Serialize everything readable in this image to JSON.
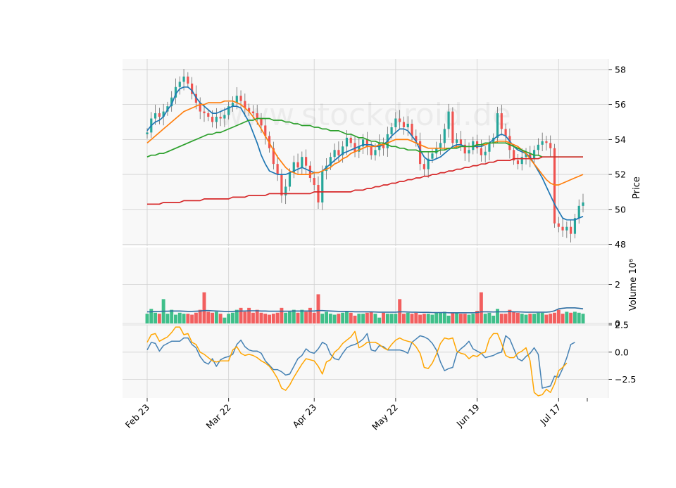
{
  "watermark": "www.stockdroid.de",
  "colors": {
    "up": "#26a69a",
    "up_bar": "#3fbf8a",
    "down": "#ef5350",
    "down_bar": "#f25f5f",
    "ma_fast": "#1f77b4",
    "ma_mid": "#ff7f0e",
    "ma_slow": "#2ca02c",
    "ma_long": "#d62728",
    "vol_ma": "#2f6fa3",
    "osc_1": "#4682b4",
    "osc_2": "#ffa500",
    "panel_bg": "#f8f8f8",
    "grid": "#d0d0d0"
  },
  "chart_data": [
    {
      "type": "candlestick",
      "ylabel": "Price",
      "ylim": [
        47.9,
        58.6
      ],
      "yticks": [
        48,
        50,
        52,
        54,
        56,
        58
      ],
      "xticks": [
        "Feb 23",
        "Mar 22",
        "Apr 23",
        "May 22",
        "Jun 19",
        "Jul 17"
      ],
      "xtick_index": [
        0,
        20,
        41,
        61,
        81,
        101
      ],
      "grid": true,
      "close": [
        54.4,
        55.2,
        55.5,
        55.3,
        55.6,
        55.9,
        56.4,
        57.0,
        57.3,
        57.6,
        57.2,
        56.6,
        56.1,
        55.6,
        55.5,
        55.3,
        55.0,
        55.3,
        55.2,
        55.4,
        55.9,
        56.1,
        56.5,
        56.2,
        55.8,
        55.6,
        55.5,
        55.2,
        54.8,
        54.2,
        53.5,
        52.6,
        52.0,
        50.8,
        51.3,
        52.1,
        52.7,
        52.4,
        53.0,
        52.5,
        51.8,
        51.4,
        50.4,
        52.2,
        52.5,
        53.0,
        53.4,
        53.1,
        53.6,
        54.1,
        53.8,
        53.3,
        53.6,
        54.0,
        53.6,
        53.1,
        53.4,
        53.8,
        53.5,
        54.3,
        54.7,
        55.2,
        55.0,
        54.7,
        54.9,
        54.2,
        53.9,
        52.6,
        52.3,
        52.9,
        53.2,
        53.5,
        53.8,
        54.6,
        55.6,
        53.8,
        54.0,
        53.7,
        53.2,
        53.4,
        53.9,
        53.5,
        53.1,
        53.3,
        53.8,
        54.1,
        55.5,
        54.6,
        54.2,
        53.4,
        52.8,
        52.6,
        53.0,
        53.2,
        52.9,
        53.4,
        53.7,
        53.9,
        53.8,
        53.5,
        49.2,
        49.0,
        48.8,
        49.0,
        48.6,
        49.5,
        50.2,
        50.4
      ],
      "series": [
        {
          "name": "",
          "role": "ma_fast",
          "values": [
            54.5,
            54.8,
            55.0,
            55.1,
            55.3,
            55.7,
            56.0,
            56.6,
            56.9,
            57.0,
            57.0,
            56.8,
            56.4,
            56.1,
            55.9,
            55.7,
            55.5,
            55.5,
            55.6,
            55.7,
            55.8,
            55.9,
            55.9,
            55.8,
            55.4,
            55.0,
            54.4,
            53.8,
            53.1,
            52.6,
            52.2,
            52.1,
            52.0,
            52.0,
            52.0,
            52.1,
            52.2,
            52.3,
            52.4,
            52.3,
            52.2,
            52.1,
            52.1,
            52.2,
            52.4,
            52.6,
            52.8,
            53.0,
            53.2,
            53.3,
            53.4,
            53.5,
            53.6,
            53.7,
            53.7,
            53.7,
            53.6,
            53.6,
            53.7,
            53.9,
            54.2,
            54.4,
            54.6,
            54.6,
            54.5,
            54.2,
            53.9,
            53.4,
            53.0,
            52.8,
            52.8,
            52.9,
            53.0,
            53.2,
            53.4,
            53.6,
            53.7,
            53.7,
            53.6,
            53.6,
            53.6,
            53.6,
            53.6,
            53.7,
            53.8,
            54.0,
            54.2,
            54.3,
            54.2,
            53.9,
            53.6,
            53.4,
            53.3,
            53.2,
            53.0,
            52.6,
            52.2,
            51.8,
            51.3,
            50.8,
            50.3,
            49.9,
            49.5,
            49.4,
            49.4,
            49.4,
            49.5,
            49.6
          ]
        },
        {
          "name": "",
          "role": "ma_mid",
          "values": [
            53.8,
            54.0,
            54.2,
            54.4,
            54.6,
            54.8,
            55.0,
            55.2,
            55.4,
            55.6,
            55.7,
            55.8,
            55.9,
            56.0,
            56.0,
            56.1,
            56.1,
            56.1,
            56.1,
            56.2,
            56.2,
            56.2,
            56.1,
            56.0,
            55.8,
            55.6,
            55.3,
            55.0,
            54.6,
            54.2,
            53.8,
            53.4,
            53.0,
            52.7,
            52.4,
            52.2,
            52.1,
            52.0,
            52.0,
            52.0,
            52.0,
            52.1,
            52.1,
            52.2,
            52.3,
            52.4,
            52.6,
            52.7,
            52.9,
            53.0,
            53.2,
            53.3,
            53.4,
            53.5,
            53.6,
            53.6,
            53.6,
            53.7,
            53.7,
            53.8,
            53.9,
            54.0,
            54.0,
            54.0,
            54.0,
            53.9,
            53.8,
            53.7,
            53.6,
            53.5,
            53.5,
            53.5,
            53.5,
            53.5,
            53.5,
            53.5,
            53.6,
            53.6,
            53.6,
            53.6,
            53.6,
            53.7,
            53.7,
            53.7,
            53.8,
            53.8,
            53.9,
            53.9,
            53.9,
            53.8,
            53.7,
            53.6,
            53.4,
            53.2,
            52.9,
            52.6,
            52.3,
            52.0,
            51.7,
            51.5,
            51.4,
            51.4,
            51.5,
            51.6,
            51.7,
            51.8,
            51.9,
            52.0
          ]
        },
        {
          "name": "",
          "role": "ma_slow",
          "values": [
            53.0,
            53.1,
            53.1,
            53.2,
            53.2,
            53.3,
            53.4,
            53.5,
            53.6,
            53.7,
            53.8,
            53.9,
            54.0,
            54.1,
            54.2,
            54.3,
            54.3,
            54.4,
            54.4,
            54.5,
            54.6,
            54.7,
            54.8,
            54.9,
            55.0,
            55.1,
            55.1,
            55.2,
            55.2,
            55.2,
            55.2,
            55.1,
            55.1,
            55.1,
            55.0,
            55.0,
            54.9,
            54.9,
            54.8,
            54.8,
            54.8,
            54.7,
            54.7,
            54.6,
            54.6,
            54.5,
            54.5,
            54.5,
            54.4,
            54.3,
            54.3,
            54.2,
            54.1,
            54.1,
            54.0,
            53.9,
            53.9,
            53.8,
            53.8,
            53.7,
            53.6,
            53.6,
            53.5,
            53.5,
            53.4,
            53.4,
            53.4,
            53.3,
            53.3,
            53.3,
            53.3,
            53.3,
            53.4,
            53.4,
            53.5,
            53.5,
            53.5,
            53.6,
            53.6,
            53.6,
            53.6,
            53.7,
            53.7,
            53.8,
            53.8,
            53.8,
            53.8,
            53.8,
            53.8,
            53.7,
            53.6,
            53.5,
            53.4,
            53.3,
            53.2,
            53.1,
            53.1,
            53.0,
            53.0,
            53.0,
            53.0,
            53.0,
            53.0,
            53.0,
            53.0,
            53.0,
            53.0,
            53.0
          ]
        },
        {
          "name": "",
          "role": "ma_long",
          "values": [
            50.3,
            50.3,
            50.3,
            50.3,
            50.4,
            50.4,
            50.4,
            50.4,
            50.4,
            50.5,
            50.5,
            50.5,
            50.5,
            50.5,
            50.6,
            50.6,
            50.6,
            50.6,
            50.6,
            50.6,
            50.6,
            50.7,
            50.7,
            50.7,
            50.7,
            50.8,
            50.8,
            50.8,
            50.8,
            50.8,
            50.9,
            50.9,
            50.9,
            50.9,
            50.9,
            50.9,
            50.9,
            50.9,
            50.9,
            50.9,
            50.9,
            51.0,
            51.0,
            51.0,
            51.0,
            51.0,
            51.0,
            51.0,
            51.0,
            51.0,
            51.0,
            51.1,
            51.1,
            51.1,
            51.2,
            51.2,
            51.3,
            51.3,
            51.4,
            51.4,
            51.5,
            51.5,
            51.6,
            51.6,
            51.7,
            51.7,
            51.8,
            51.8,
            51.9,
            51.9,
            52.0,
            52.0,
            52.1,
            52.1,
            52.2,
            52.2,
            52.3,
            52.3,
            52.4,
            52.4,
            52.5,
            52.5,
            52.6,
            52.6,
            52.7,
            52.7,
            52.8,
            52.8,
            52.8,
            52.8,
            52.9,
            52.9,
            52.9,
            52.9,
            52.9,
            52.9,
            52.9,
            53.0,
            53.0,
            53.0,
            53.0,
            53.0,
            53.0,
            53.0,
            53.0,
            53.0,
            53.0,
            53.0
          ]
        }
      ]
    },
    {
      "type": "bar",
      "ylabel": "Volume  10⁶",
      "ylim": [
        0,
        3.9
      ],
      "yticks": [
        0,
        2
      ],
      "grid": true,
      "values": [
        0.5,
        0.75,
        0.55,
        0.5,
        1.25,
        0.5,
        0.7,
        0.45,
        0.55,
        0.5,
        0.5,
        0.45,
        0.55,
        0.7,
        1.6,
        0.6,
        0.55,
        0.6,
        0.5,
        0.3,
        0.5,
        0.55,
        0.7,
        0.8,
        0.6,
        0.8,
        0.55,
        0.7,
        0.55,
        0.5,
        0.45,
        0.5,
        0.55,
        0.8,
        0.55,
        0.6,
        0.7,
        0.55,
        0.7,
        0.6,
        0.8,
        0.55,
        1.5,
        0.5,
        0.6,
        0.5,
        0.45,
        0.5,
        0.55,
        0.6,
        0.55,
        0.4,
        0.5,
        0.5,
        0.55,
        0.6,
        0.5,
        0.3,
        0.55,
        0.5,
        0.5,
        0.5,
        1.25,
        0.5,
        0.55,
        0.5,
        0.55,
        0.45,
        0.5,
        0.5,
        0.45,
        0.55,
        0.55,
        0.6,
        0.4,
        0.55,
        0.55,
        0.5,
        0.5,
        0.45,
        0.5,
        0.65,
        1.6,
        0.5,
        0.55,
        0.4,
        0.75,
        0.5,
        0.5,
        0.7,
        0.6,
        0.55,
        0.5,
        0.45,
        0.5,
        0.5,
        0.55,
        0.55,
        0.45,
        0.5,
        0.55,
        0.7,
        0.5,
        0.6,
        0.55,
        0.6,
        0.55,
        0.5
      ],
      "moving_average": [
        0.6,
        0.6,
        0.62,
        0.62,
        0.63,
        0.63,
        0.64,
        0.64,
        0.64,
        0.63,
        0.62,
        0.62,
        0.63,
        0.64,
        0.66,
        0.66,
        0.65,
        0.64,
        0.63,
        0.62,
        0.62,
        0.62,
        0.63,
        0.64,
        0.64,
        0.65,
        0.65,
        0.65,
        0.64,
        0.64,
        0.63,
        0.63,
        0.63,
        0.63,
        0.63,
        0.63,
        0.64,
        0.64,
        0.64,
        0.64,
        0.64,
        0.64,
        0.66,
        0.66,
        0.65,
        0.64,
        0.63,
        0.62,
        0.62,
        0.62,
        0.61,
        0.6,
        0.6,
        0.6,
        0.6,
        0.6,
        0.59,
        0.58,
        0.58,
        0.58,
        0.58,
        0.58,
        0.6,
        0.6,
        0.59,
        0.58,
        0.58,
        0.57,
        0.57,
        0.57,
        0.56,
        0.56,
        0.56,
        0.56,
        0.55,
        0.55,
        0.55,
        0.55,
        0.55,
        0.55,
        0.55,
        0.56,
        0.6,
        0.6,
        0.6,
        0.59,
        0.6,
        0.6,
        0.6,
        0.61,
        0.6,
        0.6,
        0.59,
        0.58,
        0.58,
        0.58,
        0.58,
        0.58,
        0.58,
        0.6,
        0.65,
        0.75,
        0.78,
        0.8,
        0.8,
        0.8,
        0.78,
        0.75
      ]
    },
    {
      "type": "line",
      "ylim": [
        -4.2,
        2.5
      ],
      "yticks": [
        2.5,
        0.0,
        -2.5
      ],
      "ytick_labels": [
        "2.5",
        "0.0",
        "−2.5"
      ],
      "grid": true,
      "series": [
        {
          "name": "",
          "role": "osc_1",
          "values": [
            0.2,
            0.9,
            0.8,
            0.1,
            0.6,
            0.8,
            1.0,
            1.0,
            1.0,
            1.3,
            1.3,
            0.7,
            0.4,
            -0.4,
            -0.9,
            -1.1,
            -0.6,
            -1.3,
            -0.7,
            -0.5,
            -0.4,
            -0.2,
            0.7,
            1.1,
            0.5,
            0.2,
            0.1,
            0.1,
            -0.1,
            -0.8,
            -1.2,
            -1.6,
            -1.6,
            -1.8,
            -2.1,
            -2.0,
            -1.3,
            -0.6,
            -0.3,
            0.3,
            0.0,
            -0.1,
            0.3,
            0.9,
            0.7,
            -0.2,
            -0.6,
            -0.7,
            -0.1,
            0.4,
            0.6,
            0.7,
            0.9,
            1.2,
            1.7,
            0.2,
            0.1,
            0.6,
            0.5,
            0.2,
            0.2,
            0.2,
            0.2,
            0.1,
            -0.1,
            0.9,
            1.2,
            1.5,
            1.4,
            1.2,
            0.8,
            0.2,
            -0.9,
            -1.7,
            -1.5,
            -1.4,
            -0.1,
            0.3,
            0.6,
            1.0,
            0.3,
            0.1,
            -0.1,
            -0.5,
            -0.4,
            -0.3,
            -0.1,
            0.0,
            1.5,
            1.2,
            0.3,
            -0.6,
            -0.8,
            -0.4,
            -0.1,
            0.4,
            -0.2,
            -3.3,
            -3.2,
            -3.1,
            -2.2,
            -2.3,
            -1.5,
            -0.5,
            0.7,
            0.9
          ]
        },
        {
          "name": "",
          "role": "osc_2",
          "values": [
            0.9,
            1.6,
            1.7,
            1.0,
            1.2,
            1.4,
            1.8,
            2.3,
            2.3,
            1.6,
            1.7,
            0.9,
            0.7,
            0.0,
            -0.2,
            -0.5,
            -0.8,
            -0.9,
            -0.8,
            -0.8,
            -0.8,
            0.2,
            0.5,
            -0.1,
            -0.3,
            -0.2,
            -0.3,
            -0.5,
            -0.8,
            -1.0,
            -1.3,
            -1.8,
            -2.4,
            -3.3,
            -3.5,
            -3.0,
            -2.3,
            -1.7,
            -1.1,
            -0.6,
            -0.7,
            -0.8,
            -1.3,
            -2.0,
            -0.9,
            -0.7,
            0.0,
            0.3,
            0.8,
            1.1,
            1.4,
            1.9,
            0.4,
            0.6,
            0.9,
            0.9,
            0.9,
            0.7,
            0.4,
            0.2,
            0.7,
            1.1,
            1.3,
            1.1,
            1.0,
            0.9,
            0.5,
            -0.1,
            -1.4,
            -1.5,
            -1.0,
            -0.2,
            0.8,
            1.3,
            1.2,
            1.3,
            0.1,
            -0.1,
            -0.2,
            -0.6,
            -0.3,
            -0.4,
            -0.1,
            0.0,
            1.2,
            1.7,
            1.7,
            0.8,
            -0.3,
            -0.5,
            -0.5,
            -0.1,
            0.1,
            0.4,
            -0.8,
            -3.7,
            -4.0,
            -3.9,
            -3.4,
            -3.7,
            -2.9,
            -1.7,
            -1.4,
            -1.0
          ]
        }
      ]
    }
  ]
}
